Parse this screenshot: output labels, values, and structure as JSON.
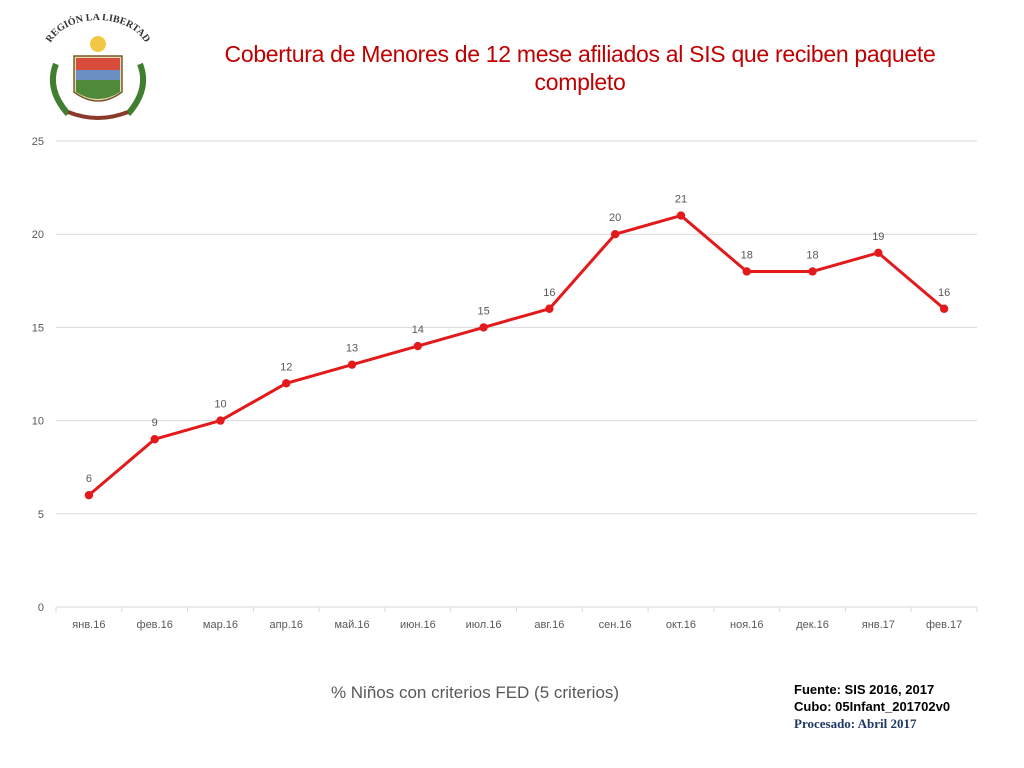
{
  "logo": {
    "label": "REGIÓN LA LIBERTAD",
    "icon": "region-la-libertad-coat-of-arms-icon"
  },
  "source": {
    "line1": "Fuente: SIS 2016, 2017",
    "line2": "Cubo: 05Infant_201702v0",
    "line3": "Procesado: Abril 2017"
  },
  "colors": {
    "title": "#c00000",
    "series": "#e31a1c",
    "grid": "#d9d9d9",
    "text": "#595959"
  },
  "chart_data": {
    "type": "line",
    "title": "Cobertura de Menores de 12 mese afiliados al SIS que reciben paquete completo",
    "xlabel": "",
    "ylabel": "",
    "categories": [
      "янв.16",
      "фев.16",
      "мар.16",
      "апр.16",
      "май.16",
      "июн.16",
      "июл.16",
      "авг.16",
      "сен.16",
      "окт.16",
      "ноя.16",
      "дек.16",
      "янв.17",
      "фев.17"
    ],
    "series": [
      {
        "name": "% Niños con criterios FED (5 criterios)",
        "values": [
          6,
          9,
          10,
          12,
          13,
          14,
          15,
          16,
          20,
          21,
          18,
          18,
          19,
          16
        ]
      }
    ],
    "ylim": [
      0,
      25
    ],
    "yticks": [
      0,
      5,
      10,
      15,
      20,
      25
    ],
    "grid": true,
    "legend": "bottom",
    "data_labels": true
  }
}
